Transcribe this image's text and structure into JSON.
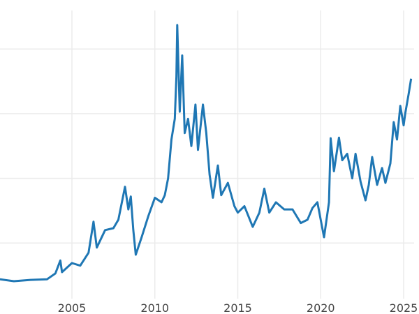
{
  "chart_data": {
    "type": "line",
    "title": "",
    "xlabel": "",
    "ylabel": "",
    "x_ticks": [
      "2005",
      "2010",
      "2015",
      "2020",
      "2025"
    ],
    "y_gridlines": [
      10,
      20,
      30,
      40
    ],
    "y_tick_labels_visible": false,
    "xlim": [
      2000.66,
      2025.5
    ],
    "ylim": [
      0,
      45
    ],
    "grid": true,
    "line_color": "#1f77b4",
    "series": [
      {
        "x": [
          2000.66,
          2001.5,
          2002.5,
          2003.5,
          2004.0,
          2004.3,
          2004.4,
          2005.0,
          2005.5,
          2006.0,
          2006.3,
          2006.5,
          2007.0,
          2007.5,
          2007.8,
          2008.2,
          2008.4,
          2008.55,
          2008.7,
          2008.85,
          2009.2,
          2009.6,
          2010.0,
          2010.4,
          2010.6,
          2010.8,
          2011.0,
          2011.2,
          2011.3,
          2011.35,
          2011.5,
          2011.65,
          2011.8,
          2012.0,
          2012.2,
          2012.45,
          2012.6,
          2012.9,
          2013.1,
          2013.3,
          2013.5,
          2013.8,
          2014.0,
          2014.4,
          2014.8,
          2015.0,
          2015.4,
          2015.9,
          2016.3,
          2016.6,
          2016.9,
          2017.3,
          2017.8,
          2018.3,
          2018.8,
          2019.2,
          2019.5,
          2019.8,
          2020.2,
          2020.5,
          2020.6,
          2020.8,
          2021.1,
          2021.3,
          2021.6,
          2021.9,
          2022.1,
          2022.4,
          2022.7,
          2022.9,
          2023.1,
          2023.4,
          2023.7,
          2023.9,
          2024.2,
          2024.4,
          2024.6,
          2024.8,
          2025.0,
          2025.1,
          2025.3,
          2025.45
        ],
        "y": [
          4.4,
          4.1,
          4.3,
          4.4,
          5.3,
          7.3,
          5.5,
          6.9,
          6.5,
          8.5,
          13.3,
          9.3,
          12.0,
          12.3,
          13.6,
          18.7,
          15.2,
          17.2,
          12.0,
          8.2,
          10.9,
          14.1,
          17.0,
          16.3,
          17.4,
          20.0,
          26.0,
          29.2,
          35.7,
          43.7,
          30.3,
          39.0,
          27.0,
          29.2,
          25.0,
          31.4,
          24.4,
          31.4,
          27.0,
          20.6,
          17.0,
          22.0,
          17.4,
          19.3,
          15.7,
          14.7,
          15.7,
          12.5,
          14.7,
          18.4,
          14.7,
          16.3,
          15.2,
          15.2,
          13.1,
          13.6,
          15.4,
          16.3,
          10.9,
          16.3,
          26.2,
          21.1,
          26.3,
          22.8,
          23.8,
          20.0,
          23.8,
          19.5,
          16.6,
          19.0,
          23.3,
          19.0,
          21.6,
          19.3,
          22.3,
          28.7,
          26.0,
          31.2,
          28.2,
          30.1,
          33.0,
          35.4
        ]
      }
    ]
  }
}
